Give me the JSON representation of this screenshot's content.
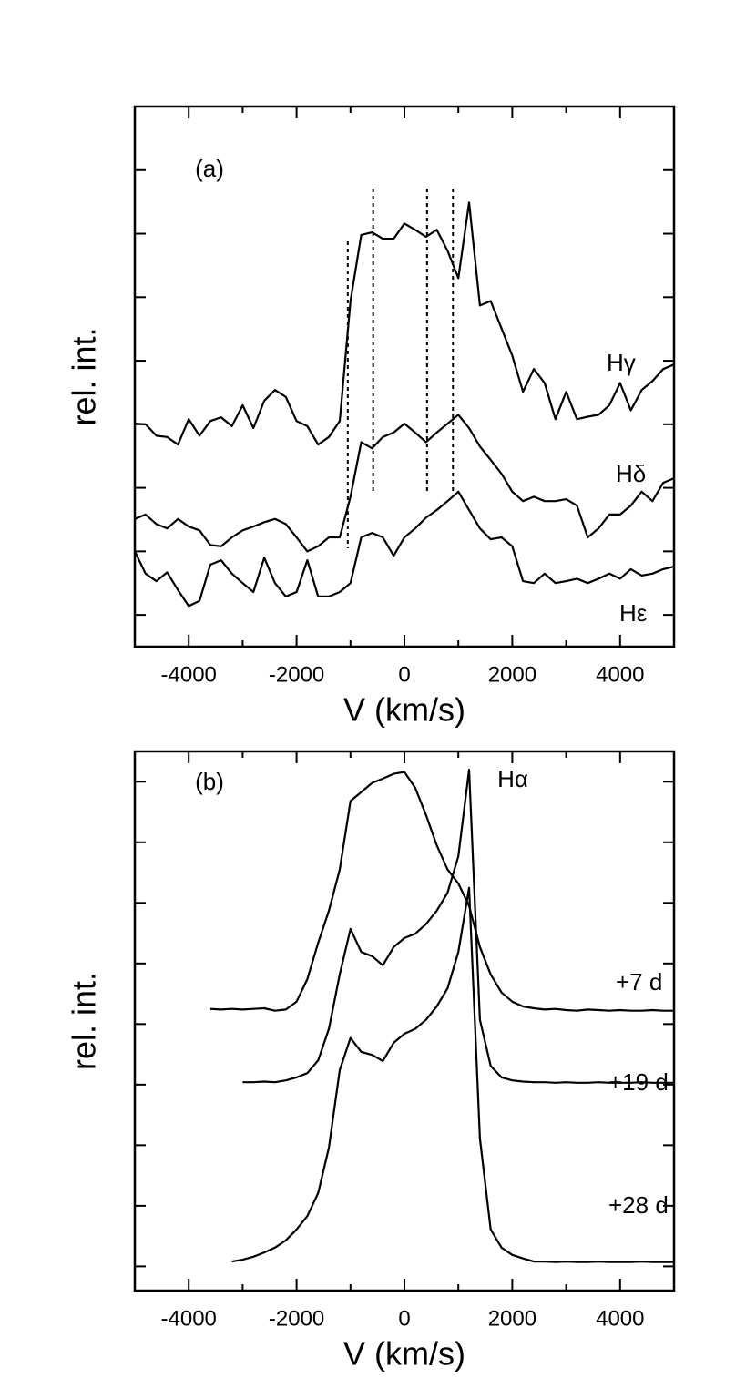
{
  "chart_data": [
    {
      "type": "line",
      "panel_label": "(a)",
      "x_label": "V (km/s)",
      "y_label": "rel. int.",
      "xlim": [
        -5000,
        5000
      ],
      "xticks": [
        -4000,
        -2000,
        0,
        2000,
        4000
      ],
      "ylim": [
        0.5,
        9
      ],
      "yticks": [
        1,
        2,
        3,
        4,
        5,
        6,
        7,
        8
      ],
      "reference_lines": [
        -1050,
        -580,
        420,
        900
      ],
      "x": [
        -5000,
        -4800,
        -4600,
        -4400,
        -4200,
        -4000,
        -3800,
        -3600,
        -3400,
        -3200,
        -3000,
        -2800,
        -2600,
        -2400,
        -2200,
        -2000,
        -1800,
        -1600,
        -1400,
        -1200,
        -1000,
        -800,
        -600,
        -400,
        -200,
        0,
        200,
        400,
        600,
        800,
        1000,
        1200,
        1400,
        1600,
        1800,
        2000,
        2200,
        2400,
        2600,
        2800,
        3000,
        3200,
        3400,
        3600,
        3800,
        4000,
        4200,
        4400,
        4600,
        4800,
        5000
      ],
      "series": [
        {
          "name": "Hγ",
          "color": "#000000",
          "values": [
            4.01,
            4.0,
            3.82,
            3.8,
            3.68,
            4.08,
            3.82,
            4.05,
            4.11,
            3.97,
            4.3,
            3.94,
            4.37,
            4.54,
            4.43,
            4.05,
            3.97,
            3.68,
            3.8,
            4.05,
            5.94,
            6.98,
            7.02,
            6.92,
            6.92,
            7.16,
            7.06,
            6.95,
            7.06,
            6.73,
            6.3,
            7.49,
            5.87,
            5.94,
            5.51,
            5.08,
            4.51,
            4.87,
            4.65,
            4.08,
            4.51,
            4.08,
            4.12,
            4.15,
            4.3,
            4.65,
            4.22,
            4.54,
            4.68,
            4.87,
            4.94
          ]
        },
        {
          "name": "Hδ",
          "color": "#000000",
          "values": [
            2.51,
            2.58,
            2.43,
            2.36,
            2.51,
            2.39,
            2.33,
            2.1,
            2.08,
            2.22,
            2.33,
            2.39,
            2.46,
            2.51,
            2.43,
            2.22,
            2.0,
            2.08,
            2.22,
            2.22,
            2.86,
            3.72,
            3.62,
            3.8,
            3.87,
            4.01,
            3.87,
            3.72,
            3.87,
            4.01,
            4.15,
            3.94,
            3.65,
            3.44,
            3.22,
            2.94,
            2.79,
            2.86,
            2.79,
            2.79,
            2.82,
            2.72,
            2.22,
            2.36,
            2.58,
            2.58,
            2.72,
            2.94,
            2.79,
            3.08,
            3.15
          ]
        },
        {
          "name": "Hε",
          "color": "#000000",
          "values": [
            2.0,
            1.65,
            1.53,
            1.67,
            1.39,
            1.14,
            1.22,
            1.79,
            1.86,
            1.65,
            1.5,
            1.36,
            1.9,
            1.5,
            1.29,
            1.36,
            1.86,
            1.29,
            1.29,
            1.36,
            1.5,
            2.22,
            2.29,
            2.22,
            1.93,
            2.22,
            2.36,
            2.53,
            2.65,
            2.79,
            2.94,
            2.65,
            2.36,
            2.19,
            2.22,
            2.08,
            1.53,
            1.5,
            1.65,
            1.5,
            1.53,
            1.57,
            1.5,
            1.57,
            1.65,
            1.57,
            1.72,
            1.62,
            1.65,
            1.72,
            1.76
          ]
        }
      ]
    },
    {
      "type": "line",
      "panel_label": "(b)",
      "annotation": "Hα",
      "x_label": "V (km/s)",
      "y_label": "rel. int.",
      "xlim": [
        -5000,
        5000
      ],
      "xticks": [
        -4000,
        -2000,
        0,
        2000,
        4000
      ],
      "ylim": [
        0.6,
        9.5
      ],
      "yticks": [
        1,
        2,
        3,
        4,
        5,
        6,
        7,
        8,
        9
      ],
      "x": [
        -5000,
        -4800,
        -4600,
        -4400,
        -4200,
        -4000,
        -3800,
        -3600,
        -3400,
        -3200,
        -3000,
        -2800,
        -2600,
        -2400,
        -2200,
        -2000,
        -1800,
        -1600,
        -1400,
        -1200,
        -1000,
        -800,
        -600,
        -400,
        -200,
        0,
        200,
        400,
        600,
        800,
        1000,
        1200,
        1400,
        1600,
        1800,
        2000,
        2200,
        2400,
        2600,
        2800,
        3000,
        3200,
        3400,
        3600,
        3800,
        4000,
        4200,
        4400,
        4600,
        4800,
        5000
      ],
      "series": [
        {
          "name": "+7 d",
          "color": "#000000",
          "values": [
            null,
            null,
            null,
            null,
            null,
            null,
            null,
            5.25,
            5.24,
            5.25,
            5.24,
            5.25,
            5.26,
            5.22,
            5.24,
            5.37,
            5.74,
            6.34,
            6.87,
            7.55,
            8.68,
            8.83,
            8.98,
            9.05,
            9.13,
            9.16,
            8.9,
            8.45,
            7.95,
            7.55,
            7.32,
            6.95,
            6.27,
            5.82,
            5.52,
            5.37,
            5.29,
            5.26,
            5.24,
            5.25,
            5.23,
            5.22,
            5.24,
            5.23,
            5.22,
            5.23,
            5.22,
            5.22,
            5.23,
            5.22,
            5.22
          ]
        },
        {
          "name": "+19 d",
          "color": "#000000",
          "values": [
            null,
            null,
            null,
            null,
            null,
            null,
            null,
            null,
            null,
            null,
            4.04,
            4.04,
            4.05,
            4.04,
            4.07,
            4.12,
            4.19,
            4.4,
            4.92,
            5.82,
            6.57,
            6.19,
            6.12,
            5.97,
            6.27,
            6.42,
            6.49,
            6.65,
            6.87,
            7.17,
            7.77,
            9.2,
            5.07,
            4.31,
            4.12,
            4.07,
            4.05,
            4.04,
            4.04,
            4.03,
            4.04,
            4.03,
            4.03,
            4.04,
            4.03,
            4.03,
            4.03,
            4.04,
            4.03,
            4.03,
            4.03
          ]
        },
        {
          "name": "+28 d",
          "color": "#000000",
          "values": [
            null,
            null,
            null,
            null,
            null,
            null,
            null,
            null,
            null,
            1.08,
            1.11,
            1.16,
            1.23,
            1.31,
            1.43,
            1.61,
            1.83,
            2.21,
            2.96,
            4.24,
            4.77,
            4.54,
            4.49,
            4.39,
            4.69,
            4.84,
            4.92,
            5.07,
            5.29,
            5.59,
            6.19,
            7.25,
            3.11,
            1.61,
            1.31,
            1.19,
            1.13,
            1.08,
            1.08,
            1.07,
            1.08,
            1.07,
            1.07,
            1.08,
            1.07,
            1.07,
            1.07,
            1.08,
            1.07,
            1.07,
            1.07
          ]
        }
      ]
    }
  ]
}
